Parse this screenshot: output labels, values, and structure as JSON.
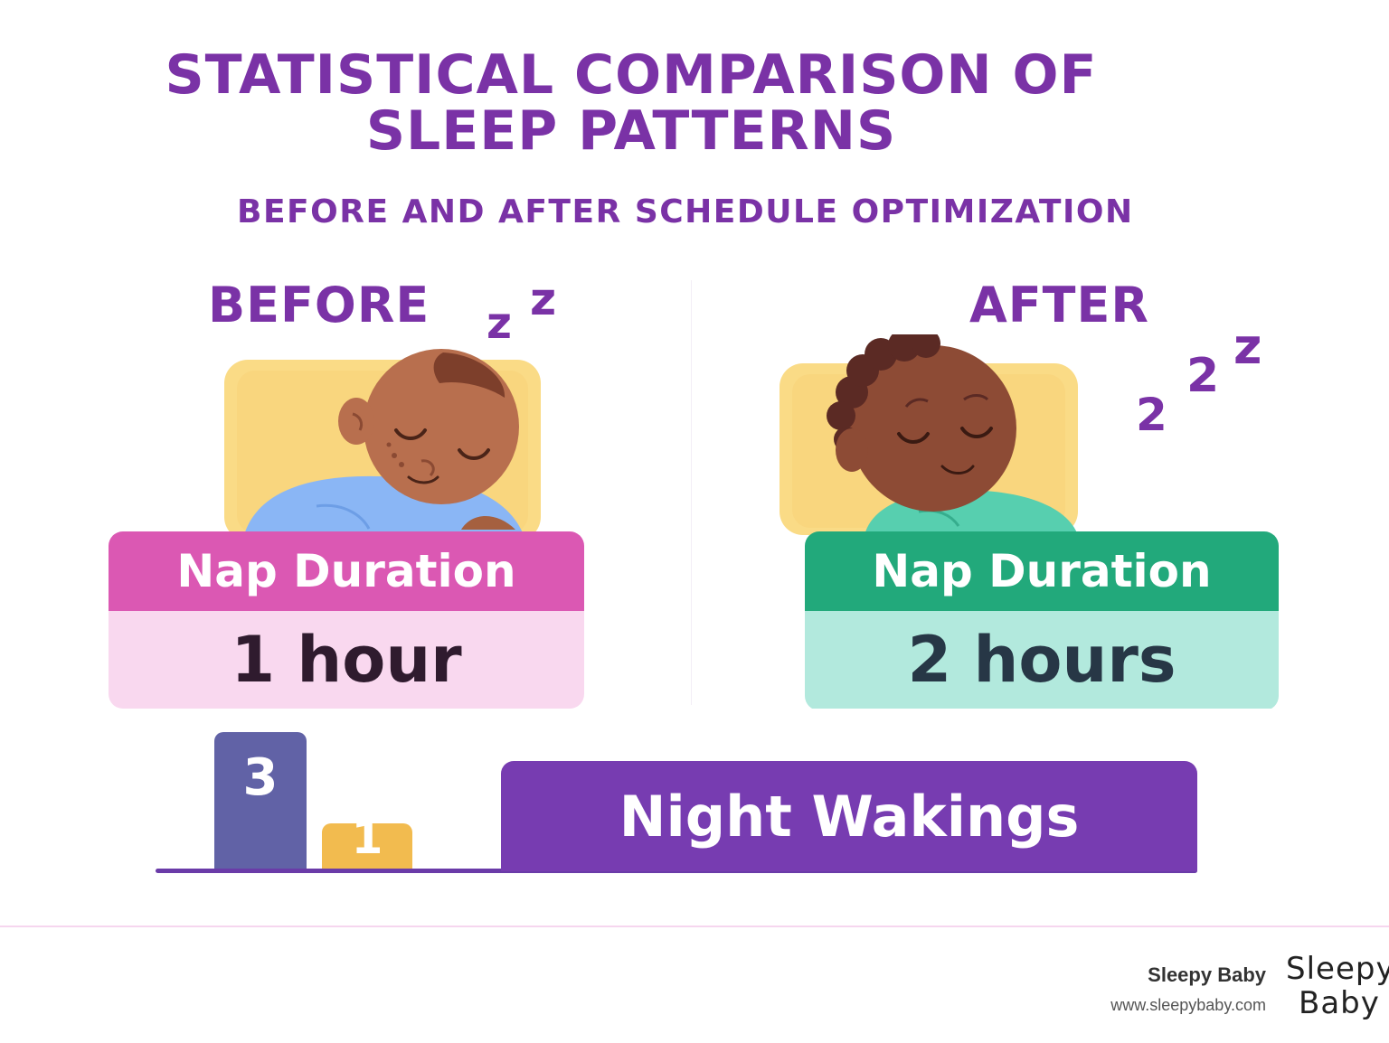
{
  "header": {
    "title_line1": "STATISTICAL COMPARISON OF",
    "title_line2": "SLEEP PATTERNS",
    "subtitle": "BEFORE AND AFTER SCHEDULE OPTIMIZATION"
  },
  "before": {
    "label": "BEFORE",
    "zz": [
      "z",
      "z"
    ],
    "card_title": "Nap Duration",
    "card_value": "1 hour",
    "colors": {
      "header": "#db58b3",
      "body": "#f9d8ef",
      "outfit": "#8ab6f5"
    }
  },
  "after": {
    "label": "AFTER",
    "zz": [
      "2",
      "2",
      "z"
    ],
    "card_title": "Nap Duration",
    "card_value": "2 hours",
    "colors": {
      "header": "#22a97b",
      "body": "#b2e9dd",
      "outfit": "#57cfaf"
    }
  },
  "night_wakings": {
    "label": "Night Wakings",
    "bars": [
      {
        "value": 3,
        "label": "3",
        "color": "#6162a6"
      },
      {
        "value": 1,
        "label": "1",
        "color": "#f2bb4f"
      }
    ]
  },
  "footer": {
    "brand_name": "Sleepy Baby",
    "url": "www.sleepybaby.com",
    "logo_text": "Sleepy Baby"
  }
}
